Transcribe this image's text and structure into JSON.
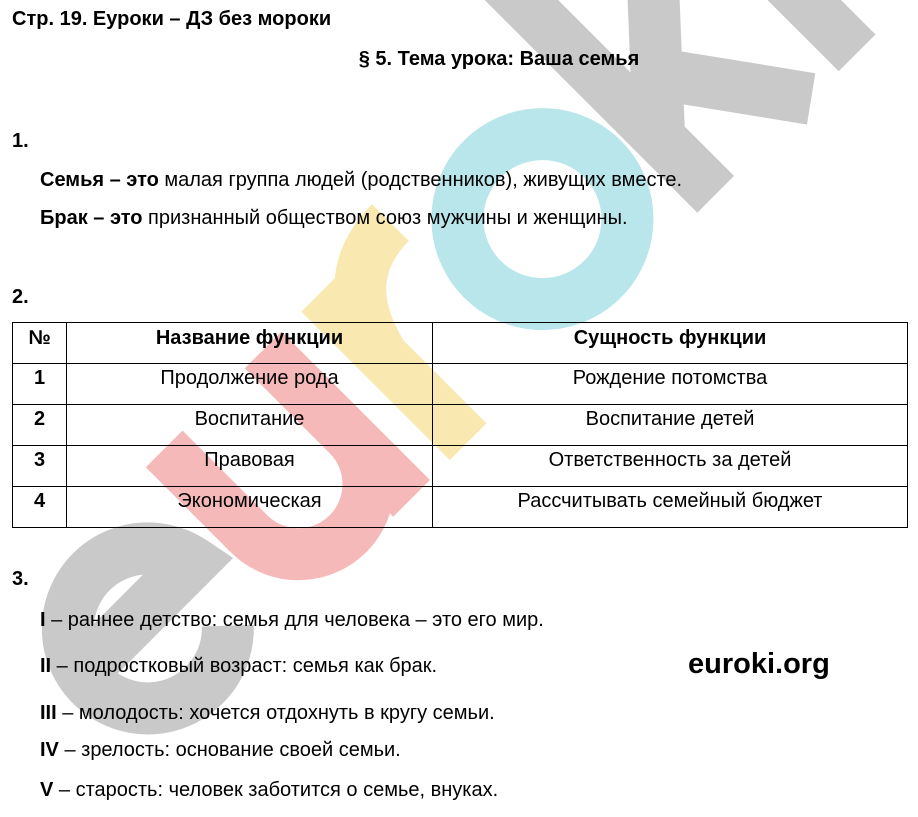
{
  "header": {
    "page_title": "Стр. 19. Еуроки – ДЗ без мороки",
    "lesson_title": "§ 5. Тема урока: Ваша семья"
  },
  "watermark": {
    "text": "euroki",
    "site": "euroki.org",
    "colors": [
      "#9e9e9e",
      "#f08080",
      "#f5d76e",
      "#7fd3dc",
      "#9e9e9e",
      "#9e9e9e"
    ]
  },
  "task1": {
    "number": "1.",
    "definitions": [
      {
        "term": "Семья – это",
        "text": " малая группа людей (родственников), живущих вместе."
      },
      {
        "term": "Брак – это",
        "text": " признанный обществом союз мужчины и женщины."
      }
    ]
  },
  "task2": {
    "number": "2.",
    "headers": [
      "№",
      "Название функции",
      "Сущность функции"
    ],
    "rows": [
      [
        "1",
        "Продолжение рода",
        "Рождение потомства"
      ],
      [
        "2",
        "Воспитание",
        "Воспитание детей"
      ],
      [
        "3",
        "Правовая",
        "Ответственность за детей"
      ],
      [
        "4",
        "Экономическая",
        "Рассчитывать семейный бюджет"
      ]
    ]
  },
  "task3": {
    "number": "3.",
    "stages": [
      {
        "roman": "I",
        "text": " – раннее детство: семья для человека – это его мир."
      },
      {
        "roman": "II",
        "text": " – подростковый возраст: семья как брак."
      },
      {
        "roman": "III",
        "text": " – молодость: хочется отдохнуть в кругу семьи."
      },
      {
        "roman": "IV",
        "text": " – зрелость: основание своей семьи."
      },
      {
        "roman": "V",
        "text": " – старость: человек заботится о семье, внуках."
      }
    ]
  }
}
